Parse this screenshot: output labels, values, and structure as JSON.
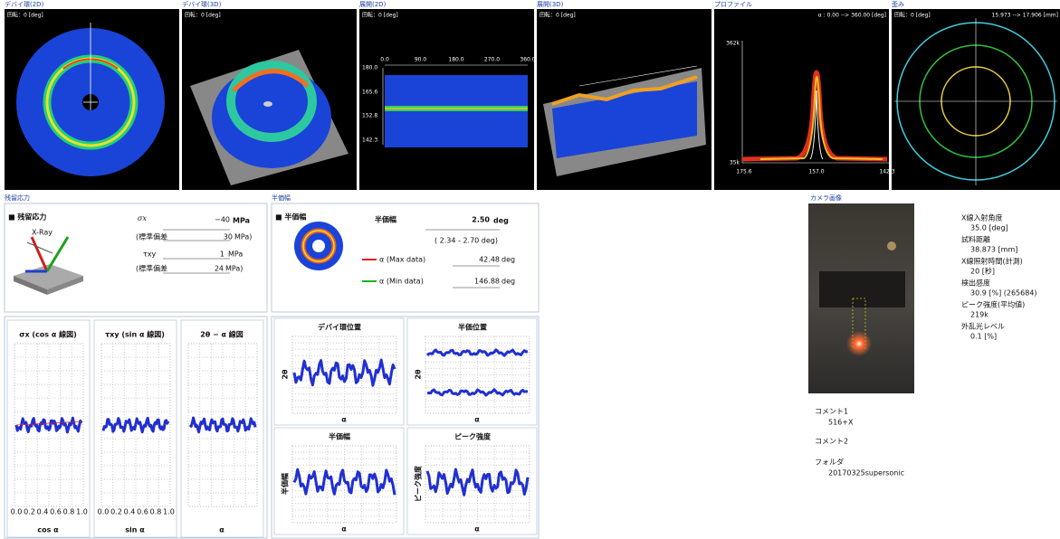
{
  "panels": [
    {
      "title": "デバイ環(2D)",
      "rotation": "回転：0 [deg]"
    },
    {
      "title": "デバイ環(3D)",
      "rotation": "回転：0 [deg]"
    },
    {
      "title": "展開(2D)",
      "rotation": "回転：0 [deg]",
      "x_ticks": [
        "0.0",
        "90.0",
        "180.0",
        "270.0",
        "360.0"
      ],
      "y_ticks": [
        "180.0",
        "165.6",
        "152.8",
        "142.3"
      ]
    },
    {
      "title": "展開(3D)",
      "rotation": "回転：0 [deg]"
    },
    {
      "title": "プロファイル",
      "range": "α : 0.00 --> 360.00 [deg]",
      "y_ticks": [
        "362k",
        "35k"
      ],
      "x_ticks": [
        "175.6",
        "157.0",
        "142.3"
      ]
    },
    {
      "title": "歪み",
      "rotation": "回転：0 [deg]",
      "range": "15.973 --> 17.906 [mm]"
    }
  ],
  "residual": {
    "header": "残留応力",
    "title": "■ 残留応力",
    "xray": "X-Ray",
    "sigma": "σx",
    "value": "−40",
    "unit": "MPa",
    "std_label": "(標準偏差",
    "std_value": "30",
    "std_unit": "MPa)",
    "tau": "τxy",
    "tau_value": "1",
    "tau_unit": "MPa",
    "std2_label": "(標準偏差",
    "std2_value": "24",
    "std2_unit": "MPa)",
    "plots": [
      {
        "title": "σx (cos α 線図)",
        "x_ticks": [
          "0.0",
          "0.2",
          "0.4",
          "0.6",
          "0.8",
          "1.0"
        ],
        "x_label": "cos α"
      },
      {
        "title": "τxy (sin α 線図)",
        "x_ticks": [
          "0.0",
          "0.2",
          "0.4",
          "0.6",
          "0.8",
          "1.0"
        ],
        "x_label": "sin α"
      },
      {
        "title": "2θ − α 線図",
        "x_label": "α"
      }
    ]
  },
  "half_width": {
    "header": "半価幅",
    "title": "■ 半価幅",
    "label": "半価幅",
    "value": "2.50",
    "unit": "deg",
    "range": "( 2.34 - 2.70 deg)",
    "max_label": "α (Max data)",
    "max_value": "42.48",
    "max_unit": "deg",
    "min_label": "α (Min data)",
    "min_value": "146.88",
    "min_unit": "deg",
    "plots": [
      {
        "title": "デバイ環位置",
        "y_label": "2θ",
        "x_label": "α"
      },
      {
        "title": "半価位置",
        "y_label": "2θ",
        "x_label": "α"
      },
      {
        "title": "半価幅",
        "y_label": "半価幅",
        "x_label": "α"
      },
      {
        "title": "ピーク強度",
        "y_label": "ピーク強度",
        "x_label": "α"
      }
    ]
  },
  "camera": {
    "header": "カメラ画像",
    "info": [
      {
        "label": "X線入射角度",
        "value": "35.0 [deg]"
      },
      {
        "label": "試料距離",
        "value": "38.873 [mm]"
      },
      {
        "label": "X線照射時間(計測)",
        "value": "20 [秒]"
      },
      {
        "label": "検出感度",
        "value": "30.9 [%] (265684)"
      },
      {
        "label": "ピーク強度(平均値)",
        "value": "219k"
      },
      {
        "label": "外乱光レベル",
        "value": "0.1 [%]"
      }
    ],
    "comments": [
      {
        "label": "コメント1",
        "value": "516+X"
      },
      {
        "label": "コメント2"
      },
      {
        "label": "フォルダ",
        "value": "20170325supersonic"
      }
    ]
  }
}
